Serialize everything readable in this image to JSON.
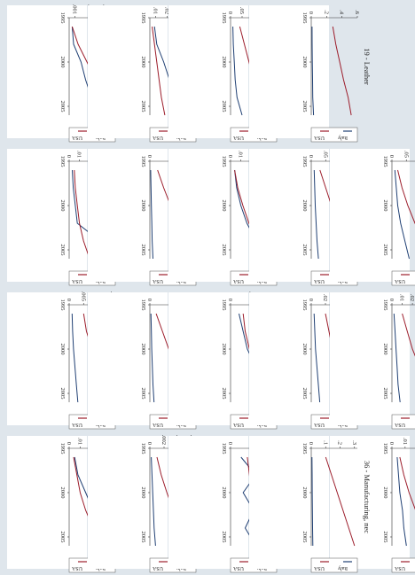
{
  "layout": {
    "cols": 5,
    "rows": 4
  },
  "colors": {
    "italy": "#1f3f73",
    "usa": "#9c1d2b",
    "background": "#dfe6ec",
    "panel": "#ffffff"
  },
  "chart_data": [
    {
      "type": "line",
      "title": "15 - Food & Bev.",
      "x": [
        1996,
        1998,
        2000,
        2002,
        2004,
        2006
      ],
      "xticks": [
        "1995",
        "2000",
        "2005"
      ],
      "xlim": [
        1995,
        2006
      ],
      "yticks": [
        ".001",
        ".002",
        ".003"
      ],
      "ylim": [
        0.0006,
        0.0037
      ],
      "series": [
        {
          "name": "Italy",
          "values": [
            0.0008,
            0.0009,
            0.0014,
            0.0017,
            0.0021,
            0.0035
          ]
        },
        {
          "name": "USA",
          "values": [
            0.0008,
            0.0012,
            0.0018,
            0.0024,
            0.0029,
            0.0033
          ]
        }
      ],
      "legend": [
        "Italy",
        "USA"
      ]
    },
    {
      "type": "line",
      "title": "17 - Textile",
      "x": [
        1996,
        1998,
        2000,
        2002,
        2004,
        2006
      ],
      "xticks": [
        "1995",
        "2000",
        "2005"
      ],
      "xlim": [
        1995,
        2006
      ],
      "yticks": [
        ".01",
        ".02",
        ".03",
        ".04"
      ],
      "ylim": [
        0.005,
        0.045
      ],
      "series": [
        {
          "name": "Italy",
          "values": [
            0.009,
            0.011,
            0.017,
            0.022,
            0.027,
            0.043
          ]
        },
        {
          "name": "USA",
          "values": [
            0.007,
            0.009,
            0.011,
            0.013,
            0.015,
            0.018
          ]
        }
      ],
      "legend": [
        "Italy",
        "USA"
      ]
    },
    {
      "type": "line",
      "title": "18 - Apparel",
      "x": [
        1996,
        1998,
        2000,
        2002,
        2004,
        2006
      ],
      "xticks": [
        "1995",
        "2000",
        "2005"
      ],
      "xlim": [
        1995,
        2006
      ],
      "yticks": [
        "0",
        ".05",
        ".1",
        ".15",
        ".2"
      ],
      "ylim": [
        0,
        0.2
      ],
      "series": [
        {
          "name": "Italy",
          "values": [
            0.01,
            0.012,
            0.016,
            0.02,
            0.028,
            0.05
          ]
        },
        {
          "name": "USA",
          "values": [
            0.04,
            0.06,
            0.08,
            0.1,
            0.12,
            0.15
          ]
        }
      ],
      "legend": [
        "Italy",
        "USA"
      ]
    },
    {
      "type": "line",
      "title": "19 - Leather",
      "x": [
        1996,
        1998,
        2000,
        2002,
        2004,
        2006
      ],
      "xticks": [
        "1995",
        "2000",
        "2005"
      ],
      "xlim": [
        1995,
        2006
      ],
      "yticks": [
        "0",
        ".2",
        ".4",
        ".6"
      ],
      "ylim": [
        0,
        0.6
      ],
      "series": [
        {
          "name": "Italy",
          "values": [
            0.01,
            0.012,
            0.014,
            0.017,
            0.02,
            0.03
          ]
        },
        {
          "name": "USA",
          "values": [
            0.28,
            0.32,
            0.37,
            0.42,
            0.48,
            0.52
          ]
        }
      ],
      "legend": [
        "Italy",
        "USA"
      ]
    },
    {
      "type": "line",
      "title": "20 - Wood Prods.",
      "x": [
        1996,
        1998,
        2000,
        2002,
        2004,
        2006
      ],
      "xticks": [
        "1995",
        "2000",
        "2005"
      ],
      "xlim": [
        1995,
        2006
      ],
      "yticks": [
        "0",
        ".01",
        ".02",
        ".03"
      ],
      "ylim": [
        0,
        0.035
      ],
      "series": [
        {
          "name": "Italy",
          "values": [
            0.004,
            0.005,
            0.006,
            0.008,
            0.009,
            0.011
          ]
        },
        {
          "name": "USA",
          "values": [
            0.006,
            0.009,
            0.013,
            0.018,
            0.024,
            0.03
          ]
        }
      ],
      "legend": [
        "Italy",
        "USA"
      ]
    },
    {
      "type": "line",
      "title": "21 - Paper",
      "x": [
        1996,
        1998,
        2000,
        2002,
        2004,
        2006
      ],
      "xticks": [
        "1995",
        "2000",
        "2005"
      ],
      "xlim": [
        1995,
        2006
      ],
      "yticks": [
        "0",
        ".005",
        ".01",
        ".015"
      ],
      "ylim": [
        0,
        0.016
      ],
      "series": [
        {
          "name": "Italy",
          "values": [
            0.001,
            0.0012,
            0.0015,
            0.002,
            0.0025,
            0.003
          ]
        },
        {
          "name": "USA",
          "values": [
            0.005,
            0.006,
            0.008,
            0.01,
            0.012,
            0.014
          ]
        }
      ],
      "legend": [
        "Italy",
        "USA"
      ]
    },
    {
      "type": "line",
      "title": "22 - Printing",
      "x": [
        1996,
        1998,
        2000,
        2002,
        2004,
        2006
      ],
      "xticks": [
        "1995",
        "2000",
        "2005"
      ],
      "xlim": [
        1995,
        2006
      ],
      "yticks": [
        "0",
        ".01",
        ".02"
      ],
      "ylim": [
        0,
        0.022
      ],
      "series": [
        {
          "name": "Italy",
          "values": [
            0.0005,
            0.0007,
            0.0009,
            0.0012,
            0.0015,
            0.002
          ]
        },
        {
          "name": "USA",
          "values": [
            0.003,
            0.006,
            0.009,
            0.012,
            0.016,
            0.02
          ]
        }
      ],
      "legend": [
        "Italy",
        "USA"
      ]
    },
    {
      "type": "line",
      "title": "24 - Chemicals",
      "x": [
        1996,
        1998,
        2000,
        2002,
        2004,
        2006
      ],
      "xticks": [
        "1995",
        "2000",
        "2005"
      ],
      "xlim": [
        1995,
        2006
      ],
      "yticks": [
        "0",
        ".005",
        ".01"
      ],
      "ylim": [
        0,
        0.011
      ],
      "series": [
        {
          "name": "Italy",
          "values": [
            0.002,
            0.003,
            0.004,
            0.006,
            0.008,
            0.0105
          ]
        },
        {
          "name": "USA",
          "values": [
            0.003,
            0.0035,
            0.0045,
            0.006,
            0.0075,
            0.0095
          ]
        }
      ],
      "legend": [
        "Italy",
        "USA"
      ]
    },
    {
      "type": "line",
      "title": "25 - Rubber",
      "x": [
        1996,
        1998,
        2000,
        2002,
        2004,
        2006
      ],
      "xticks": [
        "1995",
        "2000",
        "2005"
      ],
      "xlim": [
        1995,
        2006
      ],
      "yticks": [
        "0",
        ".02",
        ".04",
        ".06"
      ],
      "ylim": [
        0,
        0.065
      ],
      "series": [
        {
          "name": "Italy",
          "values": [
            0.004,
            0.005,
            0.006,
            0.008,
            0.01,
            0.012
          ]
        },
        {
          "name": "USA",
          "values": [
            0.02,
            0.025,
            0.03,
            0.036,
            0.045,
            0.055
          ]
        }
      ],
      "legend": [
        "Italy",
        "USA"
      ]
    },
    {
      "type": "line",
      "title": "26 - Non-metallic prods.",
      "x": [
        1996,
        1998,
        2000,
        2002,
        2004,
        2006
      ],
      "xticks": [
        "1995",
        "2000",
        "2005"
      ],
      "xlim": [
        1995,
        2006
      ],
      "yticks": [
        "0",
        ".01",
        ".02",
        ".03",
        ".04"
      ],
      "ylim": [
        0,
        0.045
      ],
      "series": [
        {
          "name": "Italy",
          "values": [
            0.002,
            0.003,
            0.004,
            0.005,
            0.006,
            0.008
          ]
        },
        {
          "name": "USA",
          "values": [
            0.01,
            0.015,
            0.02,
            0.027,
            0.034,
            0.042
          ]
        }
      ],
      "legend": [
        "Italy",
        "USA"
      ]
    },
    {
      "type": "line",
      "title": "27 - Basic Metals",
      "x": [
        1996,
        1998,
        2000,
        2002,
        2004,
        2006
      ],
      "xticks": [
        "1995",
        "2000",
        "2005"
      ],
      "xlim": [
        1995,
        2006
      ],
      "yticks": [
        "0",
        ".01",
        ".02",
        ".03",
        ".04"
      ],
      "ylim": [
        0,
        0.045
      ],
      "series": [
        {
          "name": "Italy",
          "values": [
            0.003,
            0.004,
            0.006,
            0.008,
            0.03,
            0.042
          ]
        },
        {
          "name": "USA",
          "values": [
            0.005,
            0.006,
            0.008,
            0.01,
            0.014,
            0.02
          ]
        }
      ],
      "legend": [
        "Italy",
        "USA"
      ]
    },
    {
      "type": "line",
      "title": "28 - Metal Prods.",
      "x": [
        1996,
        1998,
        2000,
        2002,
        2004,
        2006
      ],
      "xticks": [
        "1995",
        "2000",
        "2005"
      ],
      "xlim": [
        1995,
        2006
      ],
      "yticks": [
        "0",
        ".05"
      ],
      "ylim": [
        0,
        0.06
      ],
      "series": [
        {
          "name": "Italy",
          "values": [
            0.001,
            0.0015,
            0.002,
            0.0025,
            0.003,
            0.004
          ]
        },
        {
          "name": "USA",
          "values": [
            0.01,
            0.018,
            0.027,
            0.036,
            0.045,
            0.055
          ]
        }
      ],
      "legend": [
        "Italy",
        "USA"
      ]
    },
    {
      "type": "line",
      "title": "29 - Machinery, nec",
      "x": [
        1996,
        1998,
        2000,
        2002,
        2004,
        2006
      ],
      "xticks": [
        "1995",
        "2000",
        "2005"
      ],
      "xlim": [
        1995,
        2006
      ],
      "yticks": [
        "0",
        ".01",
        ".02",
        ".03",
        ".04"
      ],
      "ylim": [
        0,
        0.045
      ],
      "series": [
        {
          "name": "Italy",
          "values": [
            0.004,
            0.006,
            0.01,
            0.016,
            0.025,
            0.04
          ]
        },
        {
          "name": "USA",
          "values": [
            0.004,
            0.007,
            0.012,
            0.018,
            0.027,
            0.038
          ]
        }
      ],
      "legend": [
        "Italy",
        "USA"
      ]
    },
    {
      "type": "line",
      "title": "31 - Elect. Machinery",
      "x": [
        1996,
        1998,
        2000,
        2002,
        2004,
        2006
      ],
      "xticks": [
        "1995",
        "2000",
        "2005"
      ],
      "xlim": [
        1995,
        2006
      ],
      "yticks": [
        "0",
        ".05",
        ".1",
        ".15"
      ],
      "ylim": [
        0,
        0.16
      ],
      "series": [
        {
          "name": "Italy",
          "values": [
            0.01,
            0.012,
            0.014,
            0.017,
            0.02,
            0.025
          ]
        },
        {
          "name": "USA",
          "values": [
            0.03,
            0.05,
            0.07,
            0.09,
            0.11,
            0.14
          ]
        }
      ],
      "legend": [
        "Italy",
        "USA"
      ]
    },
    {
      "type": "line",
      "title": "32 - Radio, TV, Comm.",
      "x": [
        1996,
        1998,
        2000,
        2002,
        2004,
        2006
      ],
      "xticks": [
        "1995",
        "2000",
        "2005"
      ],
      "xlim": [
        1995,
        2006
      ],
      "yticks": [
        "0",
        ".05",
        ".1",
        ".15"
      ],
      "ylim": [
        0,
        0.16
      ],
      "series": [
        {
          "name": "Italy",
          "values": [
            0.01,
            0.015,
            0.02,
            0.03,
            0.045,
            0.06
          ]
        },
        {
          "name": "USA",
          "values": [
            0.02,
            0.035,
            0.055,
            0.08,
            0.11,
            0.15
          ]
        }
      ],
      "legend": [
        "Italy",
        "USA"
      ]
    },
    {
      "type": "line",
      "title": "33 - Medical Instr.",
      "x": [
        1996,
        1998,
        2000,
        2002,
        2004,
        2006
      ],
      "xticks": [
        "1995",
        "2000",
        "2005"
      ],
      "xlim": [
        1995,
        2006
      ],
      "yticks": [
        "0",
        ".01",
        ".02",
        ".03",
        ".04"
      ],
      "ylim": [
        0,
        0.042
      ],
      "series": [
        {
          "name": "Italy",
          "values": [
            0.005,
            0.008,
            0.015,
            0.022,
            0.03,
            0.036
          ]
        },
        {
          "name": "USA",
          "values": [
            0.004,
            0.007,
            0.01,
            0.015,
            0.022,
            0.03
          ]
        }
      ],
      "legend": [
        "Italy",
        "USA"
      ]
    },
    {
      "type": "line",
      "title": "34 - Motor Vehicles",
      "x": [
        1996,
        1998,
        2000,
        2002,
        2004,
        2006
      ],
      "xticks": [
        "1995",
        "2000",
        "2005"
      ],
      "xlim": [
        1995,
        2006
      ],
      "yticks": [
        "0",
        ".002",
        ".004",
        ".006"
      ],
      "ylim": [
        0,
        0.0065
      ],
      "series": [
        {
          "name": "Italy",
          "values": [
            0.0002,
            0.0003,
            0.0004,
            0.0005,
            0.0006,
            0.0008
          ]
        },
        {
          "name": "USA",
          "values": [
            0.001,
            0.0016,
            0.0024,
            0.0033,
            0.0044,
            0.0058
          ]
        }
      ],
      "legend": [
        "Italy",
        "USA"
      ]
    },
    {
      "type": "line",
      "title": "35 - Other Transport.",
      "x": [
        1996,
        1998,
        2000,
        2002,
        2004,
        2006
      ],
      "xticks": [
        "1995",
        "2000",
        "2005"
      ],
      "xlim": [
        1995,
        2006
      ],
      "yticks": [
        "0",
        ".01",
        ".02"
      ],
      "ylim": [
        0,
        0.022
      ],
      "series": [
        {
          "name": "Italy",
          "values": [
            0.005,
            0.012,
            0.006,
            0.011,
            0.007,
            0.012
          ]
        },
        {
          "name": "USA",
          "values": [
            0.008,
            0.009,
            0.01,
            0.011,
            0.012,
            0.013
          ]
        }
      ],
      "legend": [
        "Italy",
        "USA"
      ]
    },
    {
      "type": "line",
      "title": "36 - Manufacturing, nec",
      "x": [
        1996,
        1998,
        2000,
        2002,
        2004,
        2006
      ],
      "xticks": [
        "1995",
        "2000",
        "2005"
      ],
      "xlim": [
        1995,
        2006
      ],
      "yticks": [
        "0",
        ".1",
        ".2",
        ".3"
      ],
      "ylim": [
        0,
        0.32
      ],
      "series": [
        {
          "name": "Italy",
          "values": [
            0.005,
            0.006,
            0.007,
            0.008,
            0.009,
            0.011
          ]
        },
        {
          "name": "USA",
          "values": [
            0.1,
            0.14,
            0.18,
            0.22,
            0.26,
            0.3
          ]
        }
      ],
      "legend": [
        "Italy",
        "USA"
      ]
    }
  ]
}
